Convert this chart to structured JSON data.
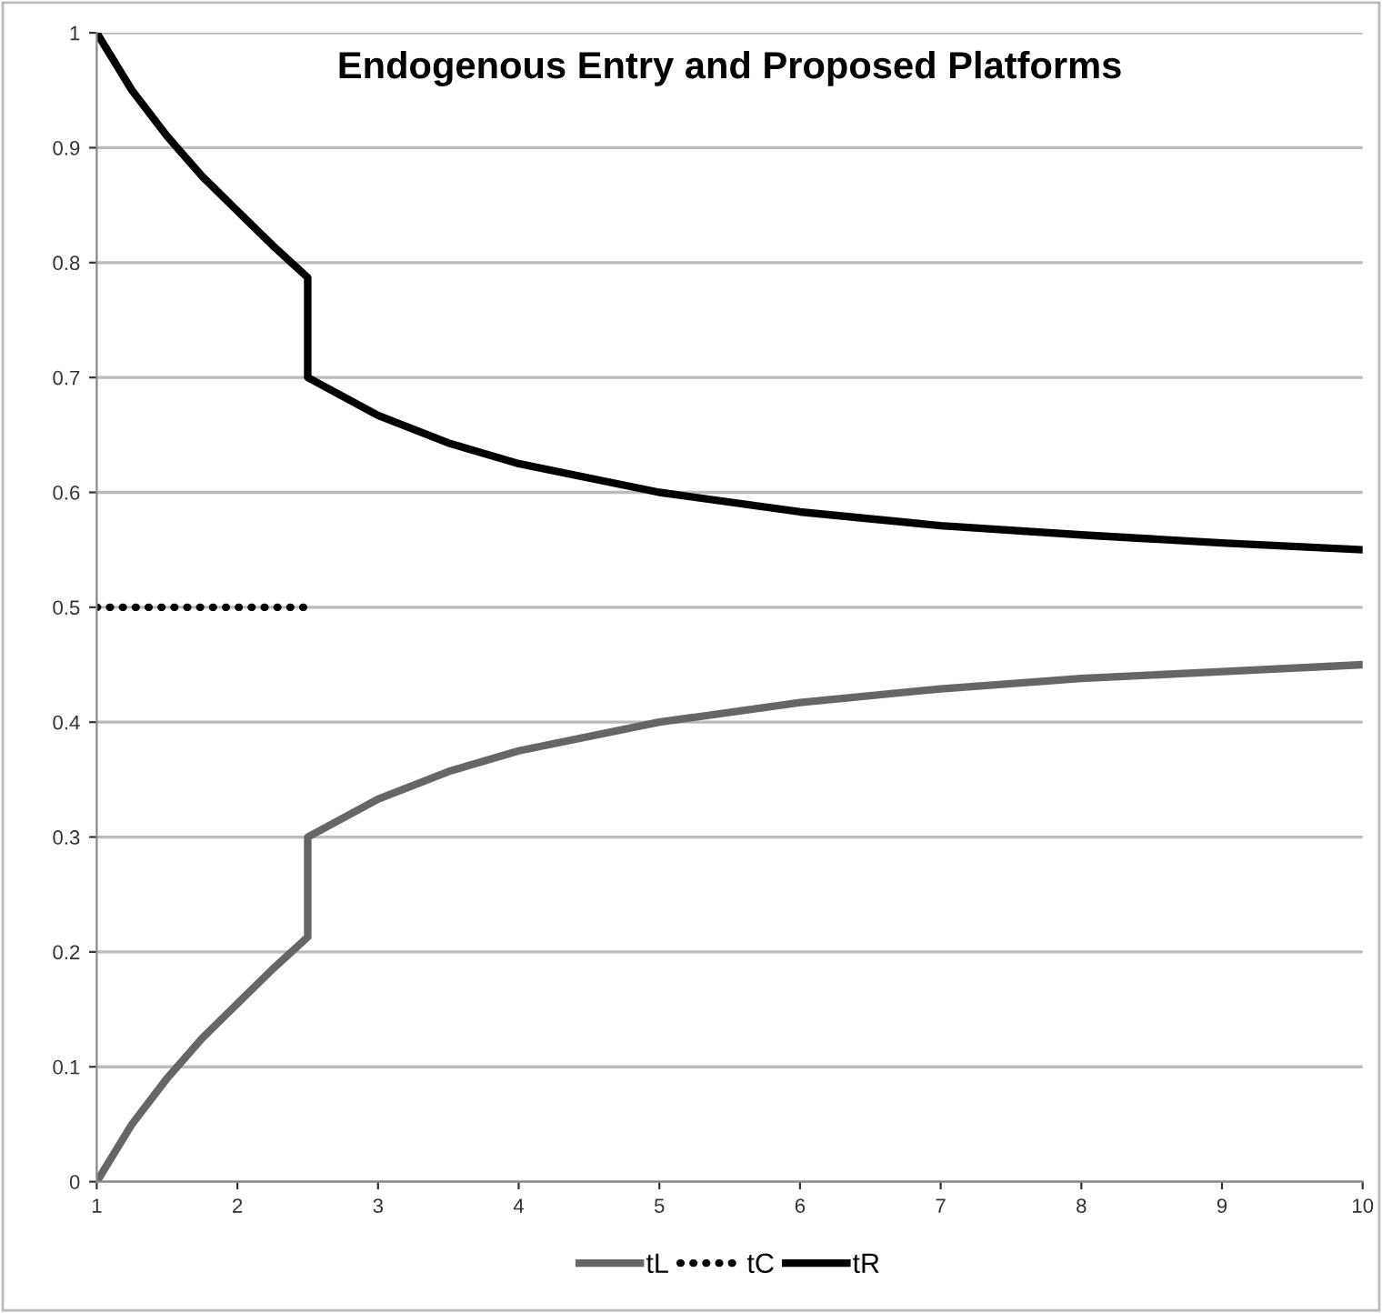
{
  "chart_data": {
    "type": "line",
    "title": "Endogenous Entry and Proposed Platforms",
    "xlim": [
      1,
      10
    ],
    "xticks": [
      1,
      2,
      3,
      4,
      5,
      6,
      7,
      8,
      9,
      10
    ],
    "ylim": [
      0,
      1
    ],
    "yticks": [
      0,
      0.1,
      0.2,
      0.3,
      0.4,
      0.5,
      0.6,
      0.7,
      0.8,
      0.9,
      1
    ],
    "grid": "y",
    "legend": "bottom",
    "marker": "none",
    "series": [
      {
        "name": "tL",
        "color": "#666666",
        "line_style": "solid",
        "x": [
          1,
          1.25,
          1.5,
          1.75,
          2,
          2.25,
          2.5,
          2.5,
          3,
          3.5,
          4,
          5,
          6,
          7,
          8,
          9,
          10
        ],
        "values": [
          0,
          0.05,
          0.09,
          0.125,
          0.155,
          0.185,
          0.213,
          0.3,
          0.333,
          0.357,
          0.375,
          0.4,
          0.417,
          0.429,
          0.438,
          0.444,
          0.45
        ]
      },
      {
        "name": "tC",
        "color": "#000000",
        "line_style": "dotted",
        "x": [
          1,
          2.5
        ],
        "values": [
          0.5,
          0.5
        ]
      },
      {
        "name": "tR",
        "color": "#000000",
        "line_style": "solid",
        "x": [
          1,
          1.25,
          1.5,
          1.75,
          2,
          2.25,
          2.5,
          2.5,
          3,
          3.5,
          4,
          5,
          6,
          7,
          8,
          9,
          10
        ],
        "values": [
          1,
          0.95,
          0.91,
          0.875,
          0.845,
          0.815,
          0.787,
          0.7,
          0.667,
          0.643,
          0.625,
          0.6,
          0.583,
          0.571,
          0.563,
          0.556,
          0.55
        ]
      }
    ]
  }
}
